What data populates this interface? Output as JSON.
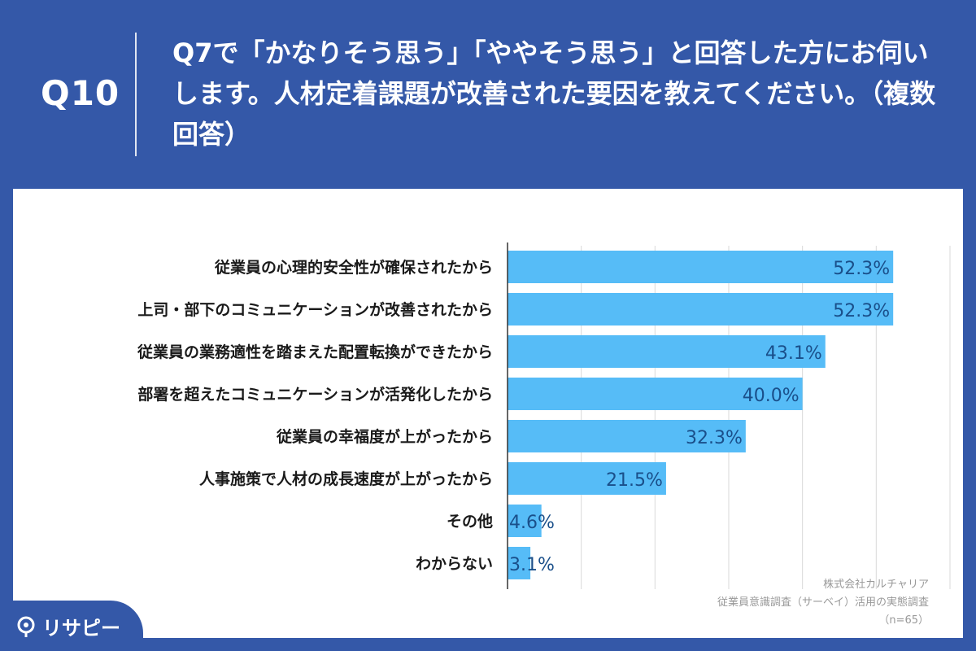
{
  "header": {
    "qnum": "Q10",
    "question": "Q7で「かなりそう思う」「ややそう思う」と回答した方にお伺いします。人材定着課題が改善された要因を教えてください。（複数回答）"
  },
  "colors": {
    "background": "#3458a8",
    "bar": "#56bcf7",
    "value_text": "#1a4f8a",
    "label_text": "#1a1a1a",
    "grid": "#d9d9d9",
    "axis": "#333333"
  },
  "chart_data": {
    "type": "bar",
    "orientation": "horizontal",
    "categories": [
      "従業員の心理的安全性が確保されたから",
      "上司・部下のコミュニケーションが改善されたから",
      "従業員の業務適性を踏まえた配置転換ができたから",
      "部署を超えたコミュニケーションが活発化したから",
      "従業員の幸福度が上がったから",
      "人事施策で人材の成長速度が上がったから",
      "その他",
      "わからない"
    ],
    "values": [
      52.3,
      52.3,
      43.1,
      40.0,
      32.3,
      21.5,
      4.6,
      3.1
    ],
    "value_labels": [
      "52.3%",
      "52.3%",
      "43.1%",
      "40.0%",
      "32.3%",
      "21.5%",
      "4.6%",
      "3.1%"
    ],
    "xlim": [
      0,
      60
    ],
    "grid": true,
    "legend": false
  },
  "credits": {
    "line1": "株式会社カルチャリア",
    "line2": "従業員意識調査（サーベイ）活用の実態調査",
    "line3": "（n=65）"
  },
  "logo": {
    "text": "リサピー",
    "icon": "pin-icon"
  }
}
